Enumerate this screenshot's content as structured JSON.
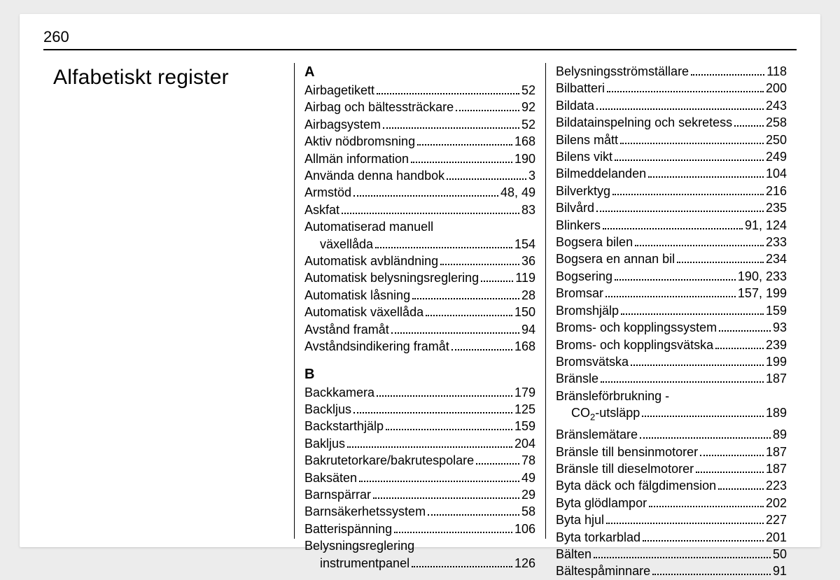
{
  "page_number": "260",
  "heading": "Alfabetiskt register",
  "col2": {
    "sections": [
      {
        "letter": "A",
        "entries": [
          {
            "term": "Airbagetikett",
            "page": "52"
          },
          {
            "term": "Airbag och bältessträckare",
            "page": "92"
          },
          {
            "term": "Airbagsystem",
            "page": "52"
          },
          {
            "term": "Aktiv nödbromsning",
            "page": "168"
          },
          {
            "term": "Allmän information",
            "page": "190"
          },
          {
            "term": "Använda denna handbok",
            "page": "3"
          },
          {
            "term": "Armstöd",
            "page": "48, 49"
          },
          {
            "term": "Askfat",
            "page": "83"
          },
          {
            "term": "Automatiserad manuell",
            "cont": true
          },
          {
            "term": "växellåda",
            "page": "154",
            "indent": true
          },
          {
            "term": "Automatisk avbländning",
            "page": "36"
          },
          {
            "term": "Automatisk belysningsreglering",
            "page": "119",
            "tight": true
          },
          {
            "term": "Automatisk låsning",
            "page": "28"
          },
          {
            "term": "Automatisk växellåda",
            "page": "150"
          },
          {
            "term": "Avstånd framåt",
            "page": "94"
          },
          {
            "term": "Avståndsindikering framåt",
            "page": "168"
          }
        ]
      },
      {
        "letter": "B",
        "gap": true,
        "entries": [
          {
            "term": "Backkamera",
            "page": "179"
          },
          {
            "term": "Backljus",
            "page": "125"
          },
          {
            "term": "Backstarthjälp",
            "page": "159"
          },
          {
            "term": "Bakljus",
            "page": "204"
          },
          {
            "term": "Bakrutetorkare/bakrutespolare",
            "page": "78"
          },
          {
            "term": "Baksäten",
            "page": "49"
          },
          {
            "term": "Barnspärrar",
            "page": "29"
          },
          {
            "term": "Barnsäkerhetssystem",
            "page": "58"
          },
          {
            "term": "Batterispänning",
            "page": "106"
          },
          {
            "term": "Belysningsreglering",
            "cont": true
          },
          {
            "term": "instrumentpanel",
            "page": "126",
            "indent": true
          }
        ]
      }
    ]
  },
  "col3": {
    "entries": [
      {
        "term": "Belysningsströmställare",
        "page": "118"
      },
      {
        "term": "Bilbatteri",
        "page": "200"
      },
      {
        "term": "Bildata",
        "page": "243"
      },
      {
        "term": "Bildatainspelning och sekretess",
        "page": "258",
        "tight": true
      },
      {
        "term": "Bilens mått",
        "page": "250"
      },
      {
        "term": "Bilens vikt",
        "page": "249"
      },
      {
        "term": "Bilmeddelanden",
        "page": "104"
      },
      {
        "term": "Bilverktyg",
        "page": "216"
      },
      {
        "term": "Bilvård",
        "page": "235"
      },
      {
        "term": "Blinkers",
        "page": "91, 124"
      },
      {
        "term": "Bogsera bilen",
        "page": "233"
      },
      {
        "term": "Bogsera en annan bil",
        "page": "234"
      },
      {
        "term": "Bogsering",
        "page": "190, 233"
      },
      {
        "term": "Bromsar",
        "page": "157, 199"
      },
      {
        "term": "Bromshjälp",
        "page": "159"
      },
      {
        "term": "Broms- och kopplingssystem",
        "page": "93"
      },
      {
        "term": "Broms- och kopplingsvätska",
        "page": "239"
      },
      {
        "term": "Bromsvätska",
        "page": "199"
      },
      {
        "term": "Bränsle",
        "page": "187"
      },
      {
        "term": "Bränsleförbrukning -",
        "cont": true
      },
      {
        "term": "CO₂-utsläpp",
        "page": "189",
        "indent": true,
        "co2": true
      },
      {
        "term": "Bränslemätare",
        "page": "89"
      },
      {
        "term": "Bränsle till bensinmotorer",
        "page": "187"
      },
      {
        "term": "Bränsle till dieselmotorer",
        "page": "187"
      },
      {
        "term": "Byta däck och fälgdimension",
        "page": "223"
      },
      {
        "term": "Byta glödlampor",
        "page": "202"
      },
      {
        "term": "Byta hjul",
        "page": "227"
      },
      {
        "term": "Byta torkarblad",
        "page": "201"
      },
      {
        "term": "Bälten",
        "page": "50"
      },
      {
        "term": "Bältespåminnare",
        "page": "91"
      }
    ]
  }
}
